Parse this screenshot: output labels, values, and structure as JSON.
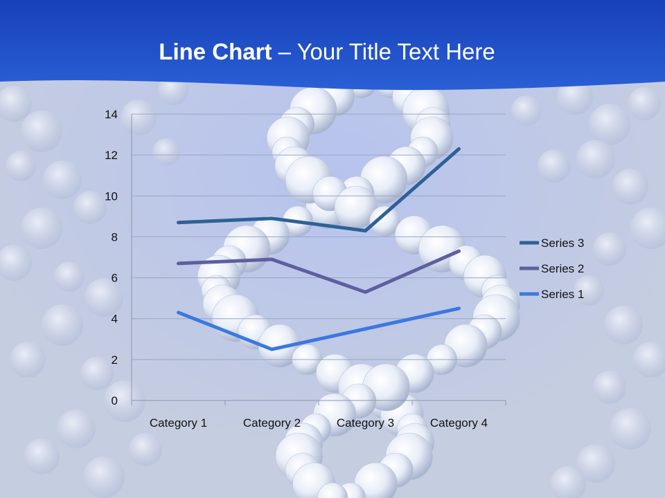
{
  "slide": {
    "title_bold": "Line Chart",
    "title_rest": " – Your Title Text Here"
  },
  "chart_data": {
    "type": "line",
    "title": "",
    "xlabel": "",
    "ylabel": "",
    "categories": [
      "Category 1",
      "Category 2",
      "Category 3",
      "Category 4"
    ],
    "ylim": [
      0,
      14
    ],
    "yticks": [
      0,
      2,
      4,
      6,
      8,
      10,
      12,
      14
    ],
    "grid": true,
    "legend_position": "right",
    "series": [
      {
        "name": "Series 1",
        "values": [
          4.3,
          2.5,
          3.5,
          4.5
        ],
        "color": "#3b78e0"
      },
      {
        "name": "Series 2",
        "values": [
          6.7,
          6.9,
          5.3,
          7.3
        ],
        "color": "#5e5f9e"
      },
      {
        "name": "Series 3",
        "values": [
          8.7,
          8.9,
          8.3,
          12.3
        ],
        "color": "#2e6196"
      }
    ],
    "legend_order": [
      "Series 3",
      "Series 2",
      "Series 1"
    ]
  }
}
